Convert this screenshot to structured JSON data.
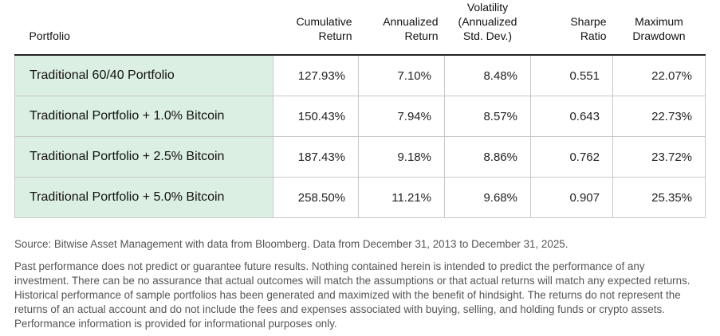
{
  "table": {
    "headers": [
      {
        "key": "portfolio",
        "lines": [
          "Portfolio"
        ]
      },
      {
        "key": "cumulative",
        "lines": [
          "Cumulative",
          "Return"
        ]
      },
      {
        "key": "annualized",
        "lines": [
          "Annualized",
          "Return"
        ]
      },
      {
        "key": "volatility",
        "lines": [
          "Volatility",
          "(Annualized",
          "Std. Dev.)"
        ]
      },
      {
        "key": "sharpe",
        "lines": [
          "Sharpe",
          "Ratio"
        ]
      },
      {
        "key": "drawdown",
        "lines": [
          "Maximum",
          "Drawdown"
        ]
      }
    ],
    "rows": [
      {
        "portfolio": "Traditional 60/40 Portfolio",
        "cumulative": "127.93%",
        "annualized": "7.10%",
        "volatility": "8.48%",
        "sharpe": "0.551",
        "drawdown": "22.07%"
      },
      {
        "portfolio": "Traditional Portfolio + 1.0% Bitcoin",
        "cumulative": "150.43%",
        "annualized": "7.94%",
        "volatility": "8.57%",
        "sharpe": "0.643",
        "drawdown": "22.73%"
      },
      {
        "portfolio": "Traditional Portfolio + 2.5% Bitcoin",
        "cumulative": "187.43%",
        "annualized": "9.18%",
        "volatility": "8.86%",
        "sharpe": "0.762",
        "drawdown": "23.72%"
      },
      {
        "portfolio": "Traditional Portfolio + 5.0% Bitcoin",
        "cumulative": "258.50%",
        "annualized": "11.21%",
        "volatility": "9.68%",
        "sharpe": "0.907",
        "drawdown": "25.35%"
      }
    ]
  },
  "notes": {
    "source": "Source: Bitwise Asset Management with data from Bloomberg. Data from December 31, 2013 to December 31, 2025.",
    "disclaimer": "Past performance does not predict or guarantee future results. Nothing contained herein is intended to predict the performance of any investment. There can be no assurance that actual outcomes will match the assumptions or that actual returns will match any expected returns. Historical performance of sample portfolios has been generated and maximized with the benefit of hindsight. The returns do not represent the returns of an actual account and do not include the fees and expenses associated with buying, selling, and holding funds or crypto assets. Performance information is provided for informational purposes only."
  },
  "colors": {
    "portfolio_cell_bg": "#dcefe3",
    "cell_border": "#c8c8c8",
    "header_rule": "#222222",
    "note_text": "#555555"
  }
}
